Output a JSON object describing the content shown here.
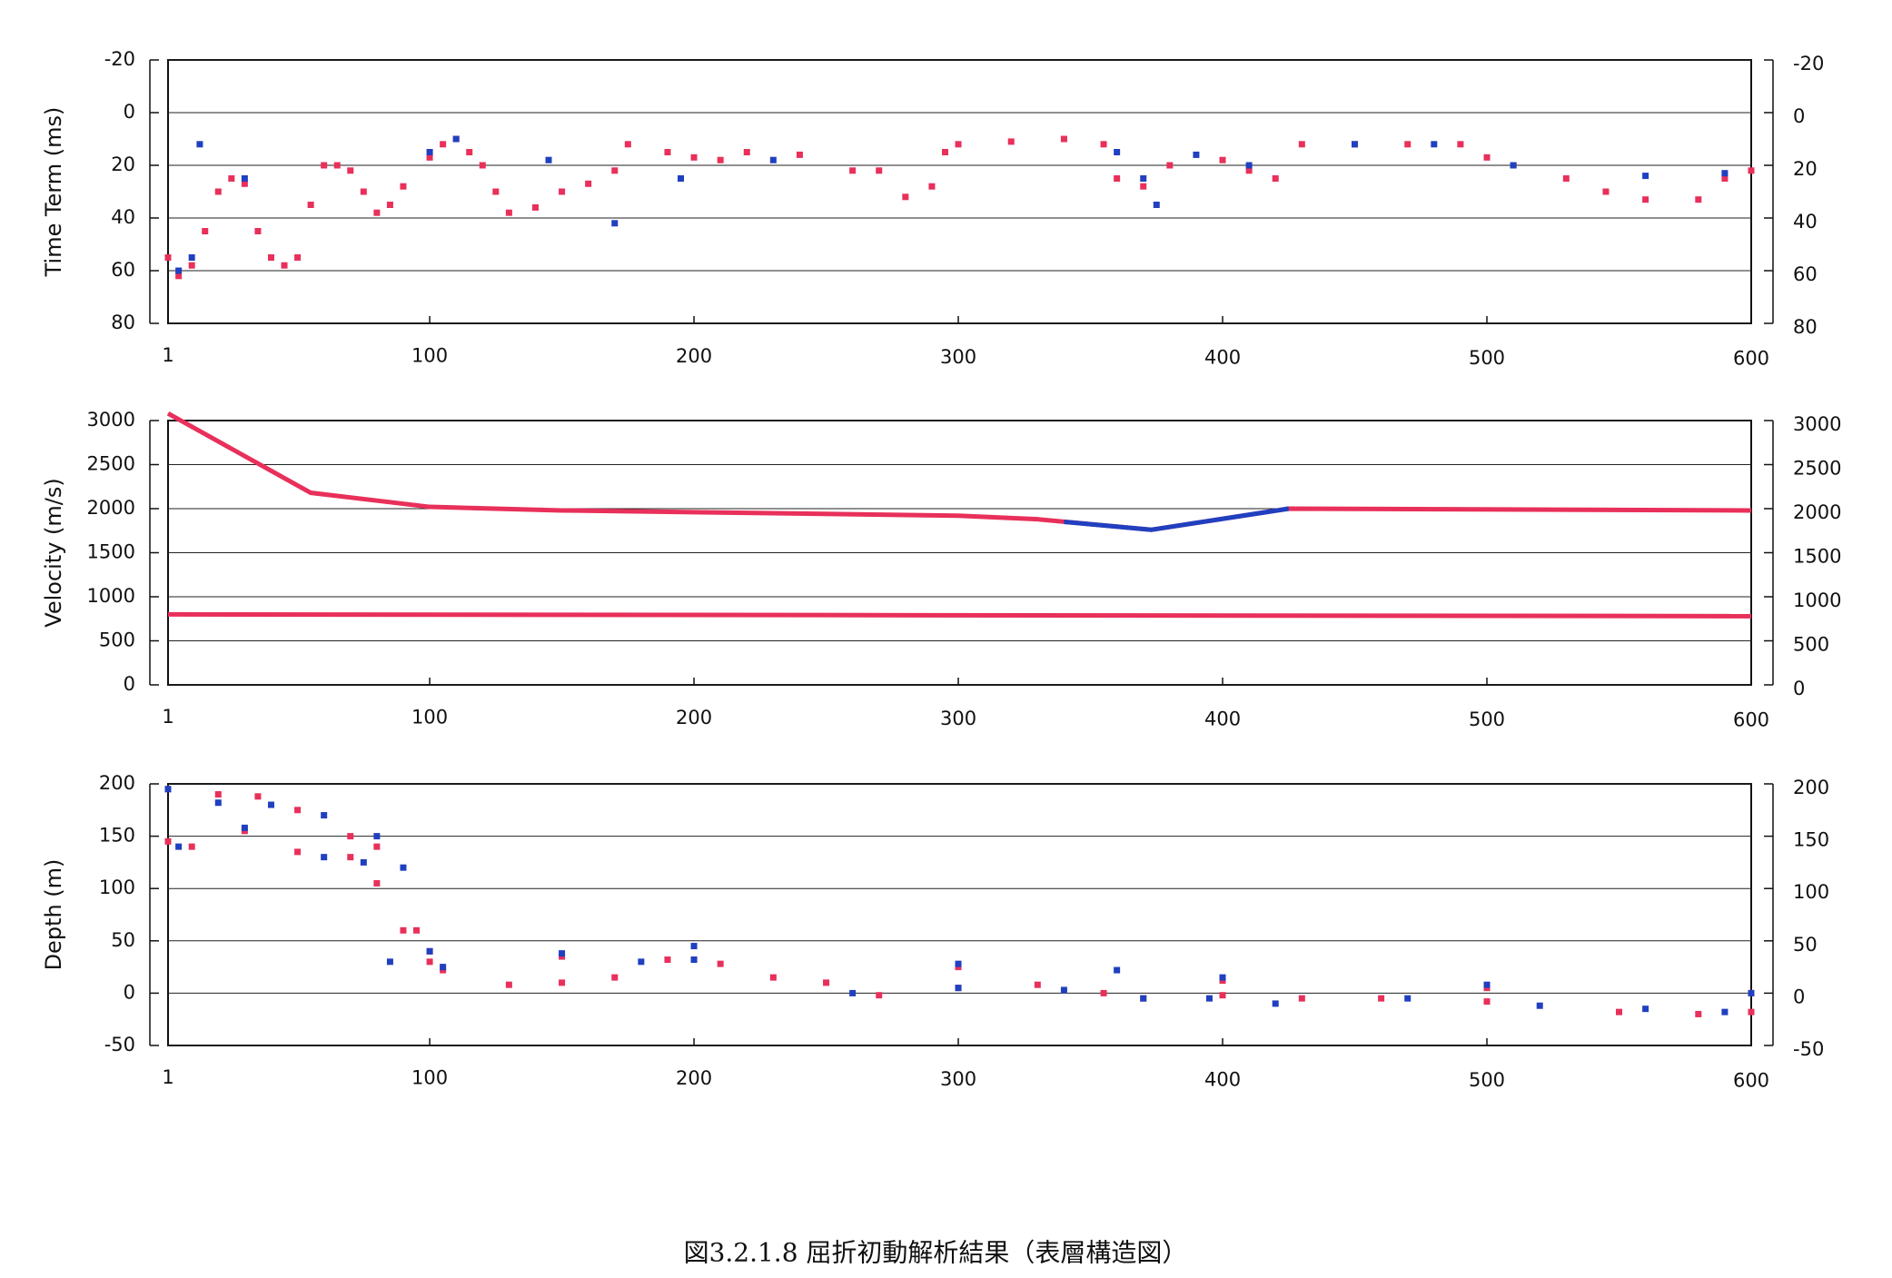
{
  "chart_data": [
    {
      "type": "scatter",
      "y_label": "Time Term (ms)",
      "y_inverted": true,
      "xlim": [
        1,
        600
      ],
      "xticks": [
        1,
        100,
        200,
        300,
        400,
        500,
        600
      ],
      "ylim": [
        -20,
        80
      ],
      "yticks": [
        -20,
        0,
        20,
        40,
        60,
        80
      ],
      "y2lim": [
        -20,
        80
      ],
      "y2ticks": [
        -20,
        0,
        20,
        40,
        60,
        80
      ],
      "grid": true,
      "series": [
        {
          "color": "#e8305a",
          "x": [
            1,
            5,
            10,
            15,
            20,
            25,
            30,
            35,
            40,
            45,
            50,
            55,
            60,
            65,
            70,
            75,
            80,
            85,
            90,
            100,
            105,
            110,
            115,
            120,
            125,
            130,
            140,
            150,
            160,
            170,
            175,
            190,
            200,
            210,
            220,
            240,
            260,
            270,
            280,
            290,
            295,
            300,
            320,
            340,
            355,
            360,
            370,
            380,
            400,
            410,
            420,
            430,
            450,
            470,
            490,
            500,
            510,
            530,
            545,
            560,
            580,
            590,
            600
          ],
          "values": [
            55,
            62,
            58,
            45,
            30,
            25,
            27,
            45,
            55,
            58,
            55,
            35,
            20,
            20,
            22,
            30,
            38,
            35,
            28,
            17,
            12,
            10,
            15,
            20,
            30,
            38,
            36,
            30,
            27,
            22,
            12,
            15,
            17,
            18,
            15,
            16,
            22,
            22,
            32,
            28,
            15,
            12,
            11,
            10,
            12,
            25,
            28,
            20,
            18,
            22,
            25,
            12,
            12,
            12,
            12,
            17,
            20,
            25,
            30,
            33,
            33,
            25,
            22
          ]
        },
        {
          "color": "#2040c0",
          "x": [
            5,
            10,
            13,
            30,
            100,
            110,
            145,
            170,
            195,
            230,
            360,
            370,
            375,
            390,
            410,
            450,
            480,
            510,
            560,
            590
          ],
          "values": [
            60,
            55,
            12,
            25,
            15,
            10,
            18,
            42,
            25,
            18,
            15,
            25,
            35,
            16,
            20,
            12,
            12,
            20,
            24,
            23
          ]
        }
      ]
    },
    {
      "type": "line",
      "y_label": "Velocity (m/s)",
      "xlim": [
        1,
        600
      ],
      "xticks": [
        1,
        100,
        200,
        300,
        400,
        500,
        600
      ],
      "ylim": [
        0,
        3000
      ],
      "yticks": [
        0,
        500,
        1000,
        1500,
        2000,
        2500,
        3000
      ],
      "y2lim": [
        0,
        3000
      ],
      "y2ticks": [
        0,
        500,
        1000,
        1500,
        2000,
        2500,
        3000
      ],
      "grid": true,
      "series": [
        {
          "color": "#e8305a",
          "x": [
            1,
            55,
            100,
            150,
            300,
            330,
            373,
            425,
            600
          ],
          "values": [
            3080,
            2180,
            2020,
            1980,
            1920,
            1880,
            1760,
            2000,
            1980
          ]
        },
        {
          "color": "#2040c0",
          "x": [
            340,
            373,
            425
          ],
          "values": [
            1850,
            1760,
            2000
          ]
        },
        {
          "color": "#e8305a",
          "x": [
            1,
            600
          ],
          "values": [
            800,
            780
          ]
        }
      ]
    },
    {
      "type": "scatter",
      "y_label": "Depth (m)",
      "xlim": [
        1,
        600
      ],
      "xticks": [
        1,
        100,
        200,
        300,
        400,
        500,
        600
      ],
      "ylim": [
        -50,
        200
      ],
      "yticks": [
        -50,
        0,
        50,
        100,
        150,
        200
      ],
      "y2lim": [
        -50,
        200
      ],
      "y2ticks": [
        -50,
        0,
        50,
        100,
        150,
        200
      ],
      "grid": true,
      "series": [
        {
          "color": "#e8305a",
          "x": [
            1,
            20,
            35,
            50,
            70,
            80,
            95,
            100,
            150,
            200,
            300,
            400,
            500,
            600
          ],
          "values": [
            195,
            190,
            188,
            175,
            150,
            140,
            60,
            40,
            35,
            32,
            25,
            12,
            5,
            0
          ]
        },
        {
          "color": "#2040c0",
          "x": [
            1,
            20,
            40,
            60,
            80,
            90,
            100,
            150,
            200,
            300,
            360,
            400,
            500,
            600
          ],
          "values": [
            195,
            182,
            180,
            170,
            150,
            120,
            40,
            38,
            45,
            28,
            22,
            15,
            8,
            0
          ]
        },
        {
          "color": "#e8305a",
          "x": [
            1,
            10,
            30,
            50,
            70,
            80,
            90,
            100,
            105,
            130,
            150,
            170,
            190,
            210,
            230,
            250,
            270,
            300,
            330,
            355,
            370,
            400,
            430,
            460,
            500,
            550,
            580,
            600
          ],
          "values": [
            145,
            140,
            155,
            135,
            130,
            105,
            60,
            30,
            22,
            8,
            10,
            15,
            32,
            28,
            15,
            10,
            -2,
            5,
            8,
            0,
            -5,
            -2,
            -5,
            -5,
            -8,
            -18,
            -20,
            -18
          ]
        },
        {
          "color": "#2040c0",
          "x": [
            5,
            30,
            60,
            75,
            85,
            105,
            180,
            200,
            260,
            300,
            340,
            370,
            395,
            420,
            470,
            520,
            560,
            590
          ],
          "values": [
            140,
            158,
            130,
            125,
            30,
            25,
            30,
            32,
            0,
            5,
            3,
            -5,
            -5,
            -10,
            -5,
            -12,
            -15,
            -18
          ]
        }
      ]
    }
  ],
  "caption": "図3.2.1.8 屈折初動解析結果（表層構造図）"
}
